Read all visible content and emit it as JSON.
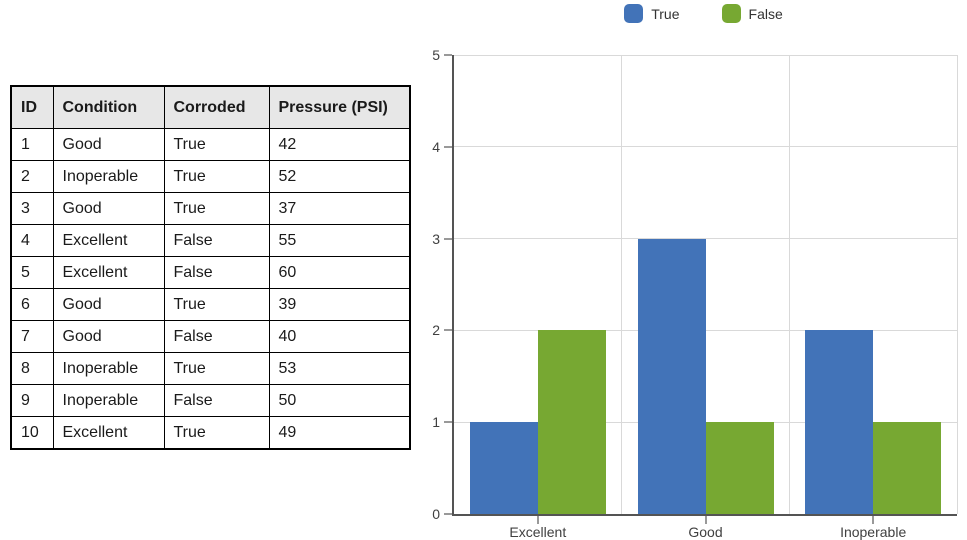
{
  "table": {
    "headers": [
      "ID",
      "Condition",
      "Corroded",
      "Pressure (PSI)"
    ],
    "rows": [
      [
        "1",
        "Good",
        "True",
        "42"
      ],
      [
        "2",
        "Inoperable",
        "True",
        "52"
      ],
      [
        "3",
        "Good",
        "True",
        "37"
      ],
      [
        "4",
        "Excellent",
        "False",
        "55"
      ],
      [
        "5",
        "Excellent",
        "False",
        "60"
      ],
      [
        "6",
        "Good",
        "True",
        "39"
      ],
      [
        "7",
        "Good",
        "False",
        "40"
      ],
      [
        "8",
        "Inoperable",
        "True",
        "53"
      ],
      [
        "9",
        "Inoperable",
        "False",
        "50"
      ],
      [
        "10",
        "Excellent",
        "True",
        "49"
      ]
    ]
  },
  "chart_data": {
    "type": "bar",
    "title": "",
    "xlabel": "",
    "ylabel": "",
    "categories": [
      "Excellent",
      "Good",
      "Inoperable"
    ],
    "series": [
      {
        "name": "True",
        "color": "#4273b8",
        "values": [
          1,
          3,
          2
        ]
      },
      {
        "name": "False",
        "color": "#77a832",
        "values": [
          2,
          1,
          1
        ]
      }
    ],
    "ylim": [
      0,
      5
    ],
    "yticks": [
      0,
      1,
      2,
      3,
      4,
      5
    ],
    "grid": true,
    "legend_position": "top"
  },
  "colors": {
    "series_true": "#4273b8",
    "series_false": "#77a832",
    "grid": "#d9d9d9",
    "axis": "#545454",
    "tick": "#999999",
    "label_text": "#404040",
    "table_border": "#000000",
    "table_header_bg": "#e7e7e7"
  }
}
